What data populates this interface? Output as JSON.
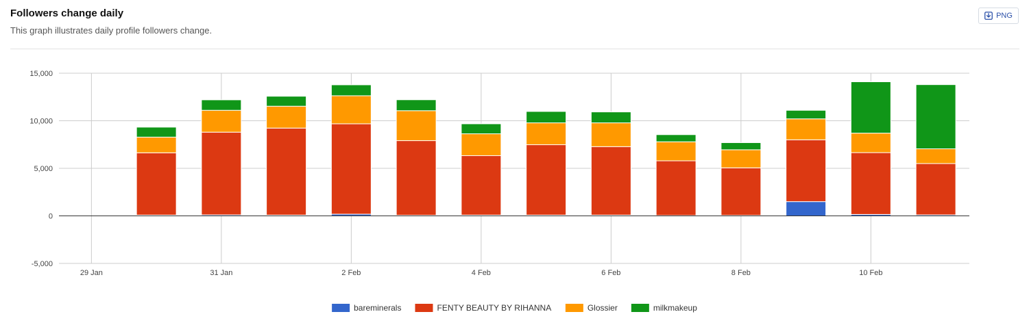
{
  "header": {
    "title": "Followers change daily",
    "subtitle": "This graph illustrates daily profile followers change.",
    "export_label": "PNG",
    "export_icon": "download-icon"
  },
  "chart_data": {
    "type": "bar",
    "stacked": true,
    "x": [
      "29 Jan",
      "30 Jan",
      "31 Jan",
      "1 Feb",
      "2 Feb",
      "3 Feb",
      "4 Feb",
      "5 Feb",
      "6 Feb",
      "7 Feb",
      "8 Feb",
      "9 Feb",
      "10 Feb",
      "11 Feb"
    ],
    "x_tick_labels": [
      "29 Jan",
      "31 Jan",
      "2 Feb",
      "4 Feb",
      "6 Feb",
      "8 Feb",
      "10 Feb"
    ],
    "y_ticks": [
      15000,
      10000,
      5000,
      0,
      -5000
    ],
    "y_tick_labels": [
      "15,000",
      "10,000",
      "5,000",
      "0",
      "-5,000"
    ],
    "ylim": [
      -5000,
      15000
    ],
    "grid": true,
    "legend_position": "bottom",
    "series": [
      {
        "name": "bareminerals",
        "color": "#3366cc",
        "values": [
          0,
          80,
          100,
          80,
          180,
          60,
          80,
          80,
          80,
          40,
          50,
          1500,
          150,
          100
        ]
      },
      {
        "name": "FENTY BEAUTY BY RIHANNA",
        "color": "#dc3912",
        "values": [
          0,
          6550,
          8700,
          9150,
          9500,
          7850,
          6250,
          7400,
          7200,
          5750,
          5000,
          6500,
          6500,
          5400
        ]
      },
      {
        "name": "Glossier",
        "color": "#ff9900",
        "values": [
          0,
          1650,
          2300,
          2300,
          2950,
          3150,
          2300,
          2300,
          2500,
          2000,
          1900,
          2200,
          2050,
          1550
        ]
      },
      {
        "name": "milkmakeup",
        "color": "#109618",
        "values": [
          0,
          1050,
          1100,
          1050,
          1150,
          1150,
          1050,
          1200,
          1150,
          750,
          750,
          900,
          5400,
          6750
        ]
      }
    ]
  }
}
